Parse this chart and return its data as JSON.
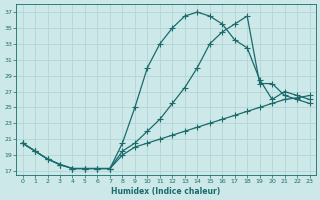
{
  "xlabel": "Humidex (Indice chaleur)",
  "bg_color": "#cde8e8",
  "line_color": "#1a6b6b",
  "grid_color": "#b8d8d8",
  "xlim": [
    -0.5,
    23.5
  ],
  "ylim": [
    16.5,
    38
  ],
  "xticks": [
    0,
    1,
    2,
    3,
    4,
    5,
    6,
    7,
    8,
    9,
    10,
    11,
    12,
    13,
    14,
    15,
    16,
    17,
    18,
    19,
    20,
    21,
    22,
    23
  ],
  "yticks": [
    17,
    19,
    21,
    23,
    25,
    27,
    29,
    31,
    33,
    35,
    37
  ],
  "line1_x": [
    0,
    1,
    2,
    3,
    4,
    5,
    6,
    7,
    8,
    9,
    10,
    11,
    12,
    13,
    14,
    15,
    16,
    17,
    18,
    19,
    20,
    21,
    22,
    23
  ],
  "line1_y": [
    20.5,
    19.5,
    18.5,
    17.8,
    17.3,
    17.3,
    17.3,
    17.3,
    20.5,
    25.0,
    30.0,
    33.0,
    35.0,
    36.5,
    37.0,
    36.5,
    35.5,
    33.5,
    32.5,
    28.5,
    26.0,
    27.0,
    26.5,
    26.0
  ],
  "line2_x": [
    0,
    1,
    2,
    3,
    4,
    5,
    6,
    7,
    8,
    9,
    10,
    11,
    12,
    13,
    14,
    15,
    16,
    17,
    18,
    19,
    20,
    21,
    22,
    23
  ],
  "line2_y": [
    20.5,
    19.5,
    18.5,
    17.8,
    17.3,
    17.3,
    17.3,
    17.3,
    19.5,
    20.5,
    22.0,
    23.5,
    25.5,
    27.5,
    30.0,
    33.0,
    34.5,
    35.5,
    36.5,
    28.0,
    28.0,
    26.5,
    26.0,
    25.5
  ],
  "line3_x": [
    0,
    1,
    2,
    3,
    4,
    5,
    6,
    7,
    8,
    9,
    10,
    11,
    12,
    13,
    14,
    15,
    16,
    17,
    18,
    19,
    20,
    21,
    22,
    23
  ],
  "line3_y": [
    20.5,
    19.5,
    18.5,
    17.8,
    17.3,
    17.3,
    17.3,
    17.3,
    19.0,
    20.0,
    20.5,
    21.0,
    21.5,
    22.0,
    22.5,
    23.0,
    23.5,
    24.0,
    24.5,
    25.0,
    25.5,
    26.0,
    26.2,
    26.5
  ]
}
